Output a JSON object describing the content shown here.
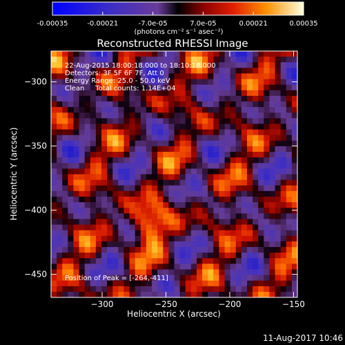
{
  "chart_data": {
    "type": "heatmap",
    "title": "Reconstructed RHESSI Image",
    "xlabel": "Heliocentric X (arcsec)",
    "ylabel": "Heliocentric Y (arcsec)",
    "xlim": [
      -340,
      -147
    ],
    "ylim": [
      -468,
      -276
    ],
    "x_ticks": [
      -300,
      -250,
      -200,
      -150
    ],
    "y_ticks": [
      -450,
      -400,
      -350,
      -300
    ],
    "colorbar": {
      "range": [
        -0.00035,
        0.00035
      ],
      "tick_labels": [
        "-0.00035",
        "-0.00021",
        "-7.0e-05",
        "7.0e-05",
        "0.00021",
        "0.00035"
      ],
      "unit_label": "(photons cm⁻² s⁻¹ asec⁻²)"
    },
    "annotations": {
      "time": "22-Aug-2015 18:00:18.000 to 18:10:18.000",
      "detectors": "Detectors: 3F 5F 6F 7F, Att 0",
      "energy": "Energy Range: 25.0 - 50.0 keV",
      "clean": "Clean     Total counts: 1.14E+04",
      "peak": "Position of Peak = [-264,-411]"
    },
    "peak_position": [
      -264,
      -411
    ],
    "colors": {
      "background": "#000000",
      "text": "#ffffff"
    }
  },
  "footer": {
    "timestamp": "11-Aug-2017 10:46"
  }
}
